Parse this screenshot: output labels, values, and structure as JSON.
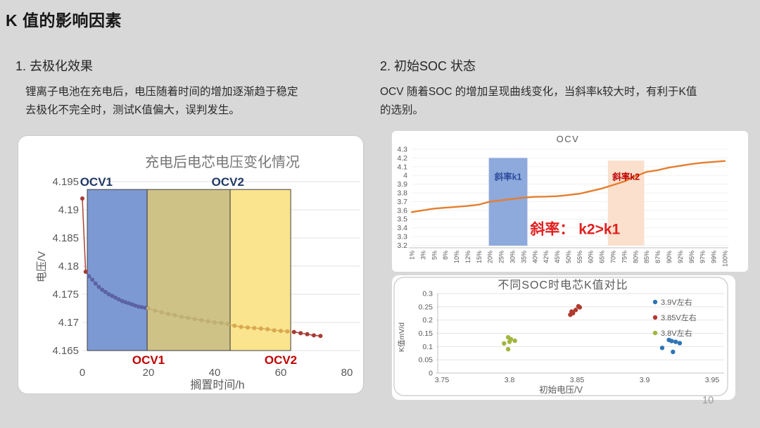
{
  "slide": {
    "title": "K 值的影响因素",
    "page_number": "10",
    "section1": {
      "heading": "1. 去极化效果",
      "body_line1": "锂离子电池在充电后，电压随着时间的增加逐渐趋于稳定",
      "body_line2": "去极化不完全时，测试K值偏大，误判发生。"
    },
    "section2": {
      "heading": "2. 初始SOC 状态",
      "body_line1": "OCV 随着SOC 的增加呈现曲线变化，当斜率k较大时，有利于K值",
      "body_line2": "的选别。"
    }
  },
  "palette": {
    "slide_background": "#d8d8d8",
    "chart_gray_text": "#595959",
    "navy_label": "#203864",
    "red_label": "#C00000",
    "orange_curve": "#E57E2D"
  },
  "chart_data": [
    {
      "id": "voltage-decay",
      "type": "line",
      "title": "充电后电芯电压变化情况",
      "xlabel": "搁置时间/h",
      "ylabel": "电压/V",
      "xlim": [
        0,
        80
      ],
      "ylim": [
        4.165,
        4.195
      ],
      "xticks": [
        "0",
        "20",
        "40",
        "60",
        "80"
      ],
      "yticks": [
        "4.195",
        "4.19",
        "4.185",
        "4.18",
        "4.175",
        "4.17",
        "4.165"
      ],
      "grid": true,
      "regions": [
        {
          "x0": 1.5,
          "x1": 19.6,
          "y_top": 4.1936,
          "color": "#7D99D4"
        },
        {
          "x0": 19.6,
          "x1": 44.7,
          "y_top": 4.1936,
          "color": "#CFC286"
        },
        {
          "x0": 44.7,
          "x1": 63.0,
          "y_top": 4.1936,
          "color": "#FAE48E"
        }
      ],
      "annotations_top": [
        {
          "text": "OCV1",
          "t": -0.7,
          "anchor": "start",
          "color": "#203864"
        },
        {
          "text": "OCV2",
          "t": 44,
          "anchor": "middle",
          "color": "#203864"
        }
      ],
      "annotations_bottom": [
        {
          "text": "OCV1",
          "t": 20,
          "color": "#C00000"
        },
        {
          "text": "OCV2",
          "t": 60,
          "color": "#C00000"
        }
      ],
      "point_color_stops": [
        {
          "until": 1.4,
          "color": "#A63A32"
        },
        {
          "until": 19.6,
          "color": "#5B63A5"
        },
        {
          "until": 44.7,
          "color": "#BFAF72"
        },
        {
          "until": 63.0,
          "color": "#D9A94F"
        },
        {
          "until": 999,
          "color": "#A63A32"
        }
      ],
      "points": [
        [
          0,
          4.192
        ],
        [
          1,
          4.179
        ],
        [
          2,
          4.1782
        ],
        [
          3,
          4.1776
        ],
        [
          4,
          4.1769
        ],
        [
          5,
          4.1763
        ],
        [
          6,
          4.1758
        ],
        [
          7,
          4.1754
        ],
        [
          8,
          4.175
        ],
        [
          9,
          4.1747
        ],
        [
          10,
          4.1744
        ],
        [
          11,
          4.1741
        ],
        [
          12,
          4.1738
        ],
        [
          13,
          4.1736
        ],
        [
          14,
          4.1734
        ],
        [
          15,
          4.1732
        ],
        [
          16,
          4.173
        ],
        [
          17,
          4.1728
        ],
        [
          18,
          4.1727
        ],
        [
          19,
          4.1726
        ],
        [
          20,
          4.1725
        ],
        [
          22,
          4.1721
        ],
        [
          24,
          4.1718
        ],
        [
          26,
          4.1715
        ],
        [
          28,
          4.1713
        ],
        [
          30,
          4.171
        ],
        [
          32,
          4.1708
        ],
        [
          34,
          4.1706
        ],
        [
          36,
          4.1704
        ],
        [
          38,
          4.1702
        ],
        [
          40,
          4.17
        ],
        [
          42,
          4.1699
        ],
        [
          44,
          4.1697
        ],
        [
          46,
          4.1694
        ],
        [
          48,
          4.1692
        ],
        [
          50,
          4.1691
        ],
        [
          52,
          4.169
        ],
        [
          54,
          4.1689
        ],
        [
          56,
          4.1688
        ],
        [
          58,
          4.1686
        ],
        [
          60,
          4.1685
        ],
        [
          62,
          4.1684
        ],
        [
          64,
          4.1683
        ],
        [
          66,
          4.1681
        ],
        [
          68,
          4.1679
        ],
        [
          70,
          4.1677
        ],
        [
          72,
          4.1676
        ]
      ]
    },
    {
      "id": "ocv",
      "type": "line",
      "title": "OCV",
      "categories": [
        "1%",
        "3%",
        "5%",
        "8%",
        "10%",
        "12%",
        "15%",
        "20%",
        "25%",
        "30%",
        "35%",
        "40%",
        "42%",
        "45%",
        "50%",
        "55%",
        "60%",
        "65%",
        "70%",
        "75%",
        "80%",
        "85%",
        "87%",
        "90%",
        "92%",
        "95%",
        "97%",
        "99%",
        "100%"
      ],
      "values": [
        3.58,
        3.6,
        3.62,
        3.63,
        3.64,
        3.65,
        3.665,
        3.7,
        3.715,
        3.73,
        3.745,
        3.755,
        3.757,
        3.762,
        3.775,
        3.79,
        3.82,
        3.85,
        3.89,
        3.93,
        3.99,
        4.04,
        4.06,
        4.09,
        4.11,
        4.13,
        4.145,
        4.155,
        4.165
      ],
      "ylim": [
        3.2,
        4.3
      ],
      "yticks": [
        "4.3",
        "4.2",
        "4.1",
        "4",
        "3.9",
        "3.8",
        "3.7",
        "3.6",
        "3.5",
        "3.4",
        "3.3",
        "3.2"
      ],
      "line_color": "#E57E2D",
      "regions": [
        {
          "label": "斜率k1",
          "i0": 6.9,
          "i1": 10.35,
          "y_top": 4.2,
          "color": "#8EA9DB",
          "label_color": "#2E4D9E",
          "label_v": 3.95
        },
        {
          "label": "斜率k2",
          "i0": 17.55,
          "i1": 20.8,
          "y_top": 4.17,
          "color": "#FAE0CD",
          "label_color": "#C00000",
          "label_v": 3.95
        }
      ],
      "annotation": {
        "text": "斜率：  k2>k1",
        "i": 10.6,
        "v": 3.33,
        "color": "#E02020"
      }
    },
    {
      "id": "k-scatter",
      "type": "scatter",
      "title": "不同SOC时电芯K值对比",
      "xlabel": "初始电压/V",
      "ylabel": "K值mV/d",
      "xlim": [
        3.75,
        3.95
      ],
      "ylim": [
        0,
        0.3
      ],
      "xticks": [
        "3.75",
        "3.8",
        "3.85",
        "3.9",
        "3.95"
      ],
      "yticks": [
        "0.3",
        "0.25",
        "0.2",
        "0.15",
        "0.1",
        "0.05",
        "0"
      ],
      "grid": true,
      "legend_position": "right",
      "series": [
        {
          "name": "3.9V左右",
          "color": "#2E75B6",
          "points": [
            [
              3.913,
              0.095
            ],
            [
              3.918,
              0.125
            ],
            [
              3.92,
              0.121
            ],
            [
              3.923,
              0.118
            ],
            [
              3.926,
              0.113
            ],
            [
              3.921,
              0.08
            ]
          ]
        },
        {
          "name": "3.85V左右",
          "color": "#B03A2E",
          "points": [
            [
              3.846,
              0.232
            ],
            [
              3.847,
              0.226
            ],
            [
              3.849,
              0.238
            ],
            [
              3.851,
              0.252
            ],
            [
              3.852,
              0.248
            ],
            [
              3.845,
              0.22
            ]
          ]
        },
        {
          "name": "3.8V左右",
          "color": "#A3B541",
          "points": [
            [
              3.796,
              0.112
            ],
            [
              3.799,
              0.135
            ],
            [
              3.801,
              0.128
            ],
            [
              3.804,
              0.122
            ],
            [
              3.8,
              0.118
            ],
            [
              3.799,
              0.09
            ]
          ]
        }
      ]
    }
  ]
}
